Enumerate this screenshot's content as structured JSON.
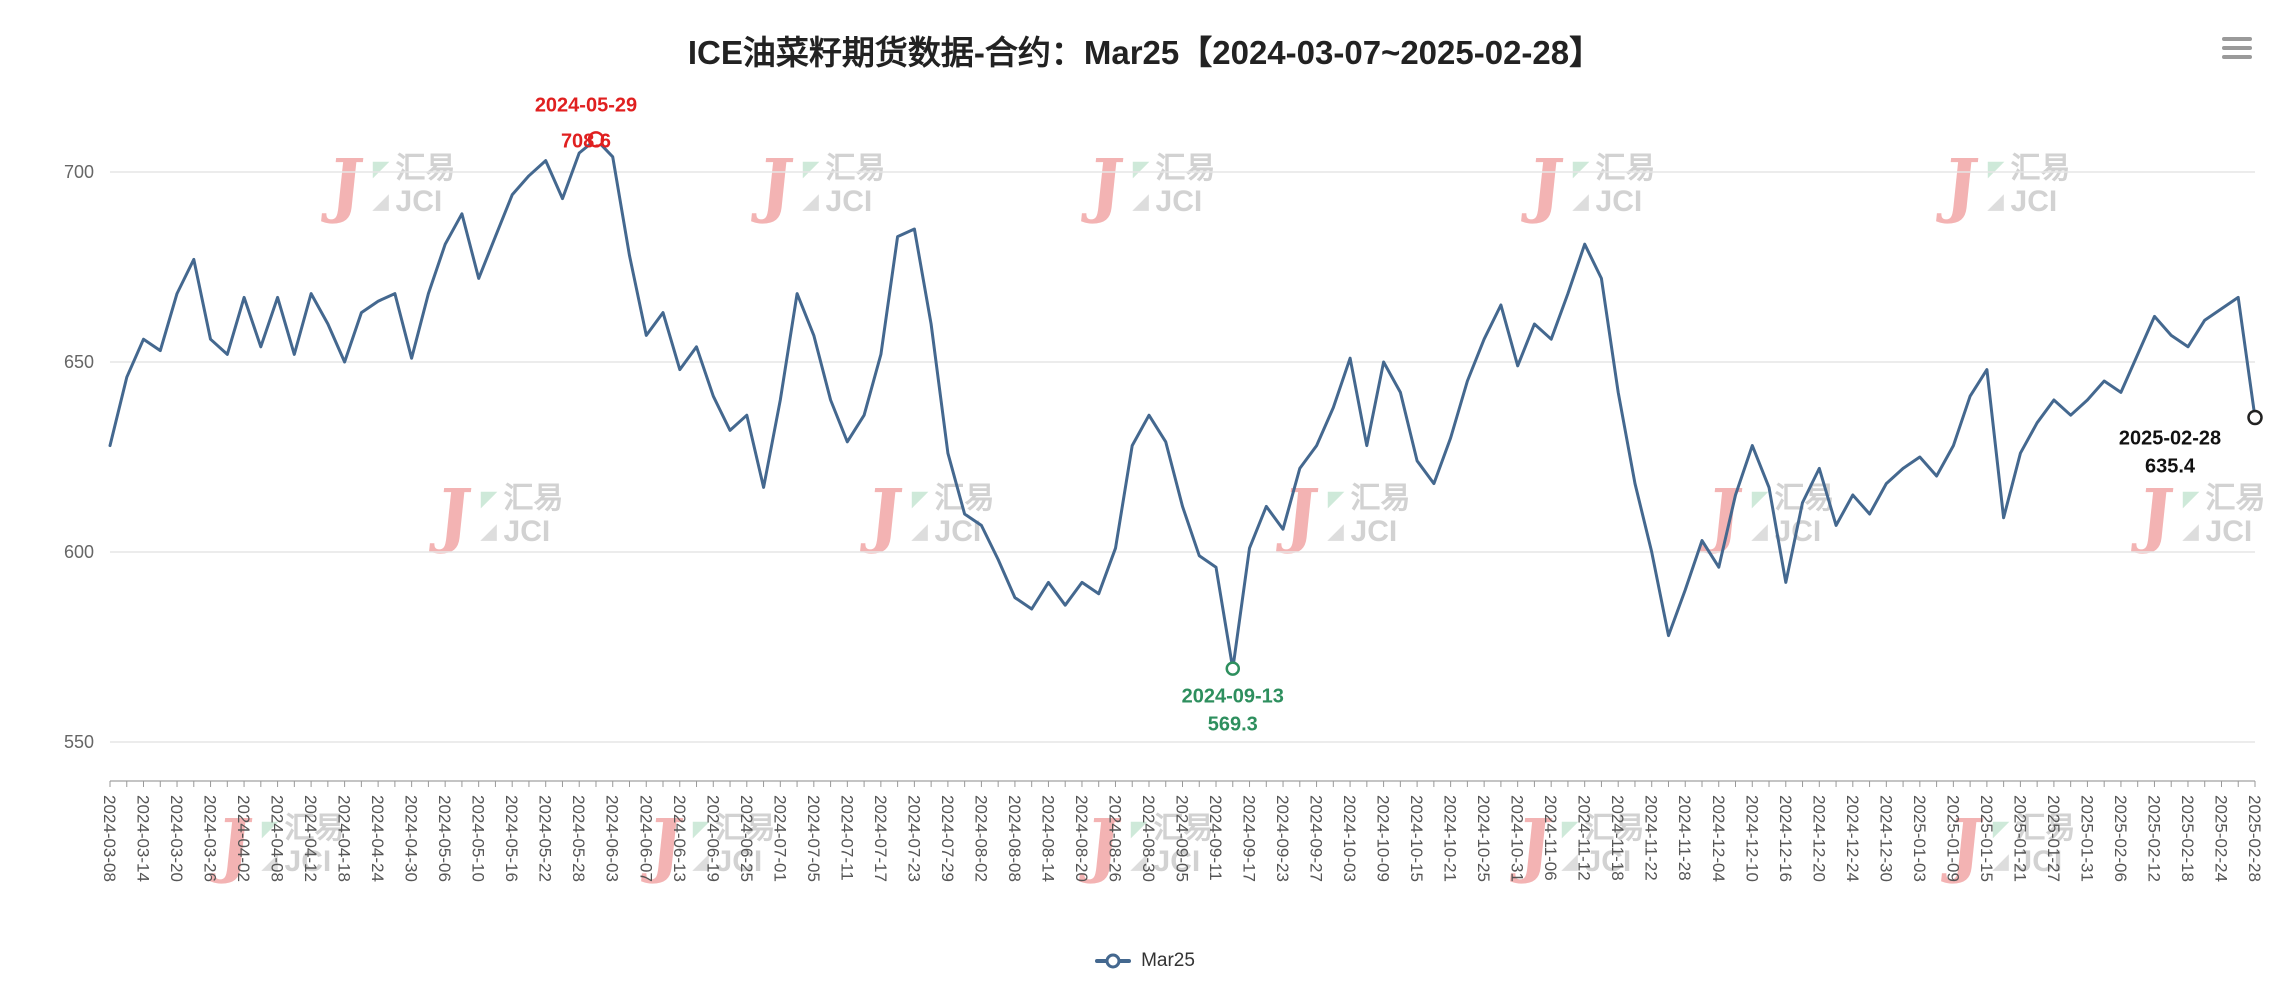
{
  "title": "ICE油菜籽期货数据-合约：Mar25【2024-03-07~2025-02-28】",
  "header": {
    "menu_icon": "hamburger-menu"
  },
  "watermark": {
    "logo_letter": "J",
    "cn": "汇易",
    "en": "JCI"
  },
  "legend": {
    "label": "Mar25"
  },
  "chart_data": {
    "type": "line",
    "series_name": "Mar25",
    "title": "ICE油菜籽期货数据-合约：Mar25【2024-03-07~2025-02-28】",
    "line_color": "#44688f",
    "grid": true,
    "y_ticks": [
      550,
      600,
      650,
      700
    ],
    "ylim": [
      540,
      712
    ],
    "x_tick_labels": [
      "2024-03-08",
      "2024-03-14",
      "2024-03-20",
      "2024-03-26",
      "2024-04-02",
      "2024-04-08",
      "2024-04-12",
      "2024-04-18",
      "2024-04-24",
      "2024-04-30",
      "2024-05-06",
      "2024-05-10",
      "2024-05-16",
      "2024-05-22",
      "2024-05-28",
      "2024-06-03",
      "2024-06-07",
      "2024-06-13",
      "2024-06-19",
      "2024-06-25",
      "2024-07-01",
      "2024-07-05",
      "2024-07-11",
      "2024-07-17",
      "2024-07-23",
      "2024-07-29",
      "2024-08-02",
      "2024-08-08",
      "2024-08-14",
      "2024-08-20",
      "2024-08-26",
      "2024-08-30",
      "2024-09-05",
      "2024-09-11",
      "2024-09-17",
      "2024-09-23",
      "2024-09-27",
      "2024-10-03",
      "2024-10-09",
      "2024-10-15",
      "2024-10-21",
      "2024-10-25",
      "2024-10-31",
      "2024-11-06",
      "2024-11-12",
      "2024-11-18",
      "2024-11-22",
      "2024-11-28",
      "2024-12-04",
      "2024-12-10",
      "2024-12-16",
      "2024-12-20",
      "2024-12-24",
      "2024-12-30",
      "2025-01-03",
      "2025-01-09",
      "2025-01-15",
      "2025-01-21",
      "2025-01-27",
      "2025-01-31",
      "2025-02-06",
      "2025-02-12",
      "2025-02-18",
      "2025-02-24",
      "2025-02-28"
    ],
    "points_per_tick_gap": 2,
    "values": [
      628,
      646,
      656,
      653,
      668,
      677,
      656,
      652,
      667,
      654,
      667,
      652,
      668,
      660,
      650,
      663,
      666,
      668,
      651,
      668,
      681,
      689,
      672,
      683,
      694,
      699,
      703,
      693,
      705,
      708.6,
      704,
      678,
      657,
      663,
      648,
      654,
      641,
      632,
      636,
      617,
      640,
      668,
      657,
      640,
      629,
      636,
      652,
      683,
      685,
      660,
      626,
      610,
      607,
      598,
      588,
      585,
      592,
      586,
      592,
      589,
      601,
      628,
      636,
      629,
      612,
      599,
      596,
      569.3,
      601,
      612,
      606,
      622,
      628,
      638,
      651,
      628,
      650,
      642,
      624,
      618,
      630,
      645,
      656,
      665,
      649,
      660,
      656,
      668,
      681,
      672,
      642,
      618,
      600,
      578,
      590,
      603,
      596,
      615,
      628,
      617,
      592,
      613,
      622,
      607,
      615,
      610,
      618,
      622,
      625,
      620,
      628,
      641,
      648,
      609,
      626,
      634,
      640,
      636,
      640,
      645,
      642,
      652,
      662,
      657,
      654,
      661,
      664,
      667,
      635.4
    ],
    "annotations": {
      "max": {
        "date": "2024-05-29",
        "value": 708.6,
        "index": 29,
        "color": "#e02020"
      },
      "min": {
        "date": "2024-09-13",
        "value": 569.3,
        "index": 67,
        "color": "#2e8f5e"
      },
      "last": {
        "date": "2025-02-28",
        "value": 635.4,
        "index": 128,
        "color": "#111111"
      }
    }
  }
}
